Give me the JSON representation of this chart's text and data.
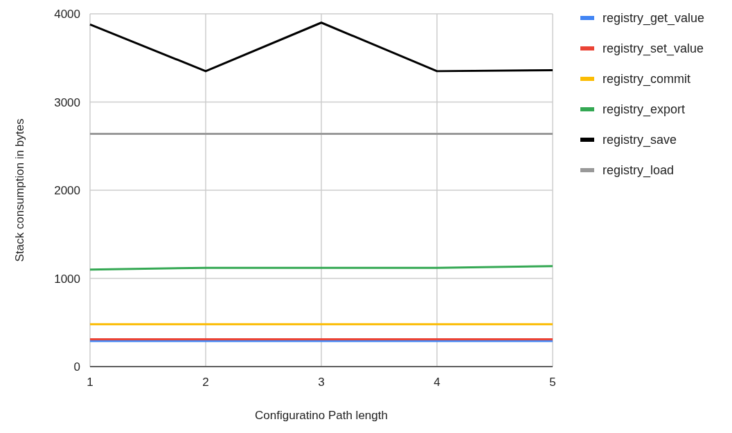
{
  "chart_data": {
    "type": "line",
    "xlabel": "Configuratino Path length",
    "ylabel": "Stack consumption in bytes",
    "x": [
      1,
      2,
      3,
      4,
      5
    ],
    "xlim": [
      1,
      5
    ],
    "xticks": [
      1,
      2,
      3,
      4,
      5
    ],
    "ylim": [
      0,
      4000
    ],
    "yticks": [
      0,
      1000,
      2000,
      3000,
      4000
    ],
    "grid": true,
    "legend": "right",
    "marker": "none",
    "line_style": "solid",
    "series": [
      {
        "name": "registry_get_value",
        "color": "#4285f4",
        "values": [
          290,
          290,
          290,
          290,
          290
        ]
      },
      {
        "name": "registry_set_value",
        "color": "#ea4335",
        "values": [
          310,
          310,
          310,
          310,
          310
        ]
      },
      {
        "name": "registry_commit",
        "color": "#fbbc04",
        "values": [
          480,
          480,
          480,
          480,
          480
        ]
      },
      {
        "name": "registry_export",
        "color": "#34a853",
        "values": [
          1100,
          1120,
          1120,
          1120,
          1140
        ]
      },
      {
        "name": "registry_save",
        "color": "#000000",
        "values": [
          3880,
          3350,
          3900,
          3350,
          3360
        ]
      },
      {
        "name": "registry_load",
        "color": "#999999",
        "values": [
          2640,
          2640,
          2640,
          2640,
          2640
        ]
      }
    ]
  }
}
